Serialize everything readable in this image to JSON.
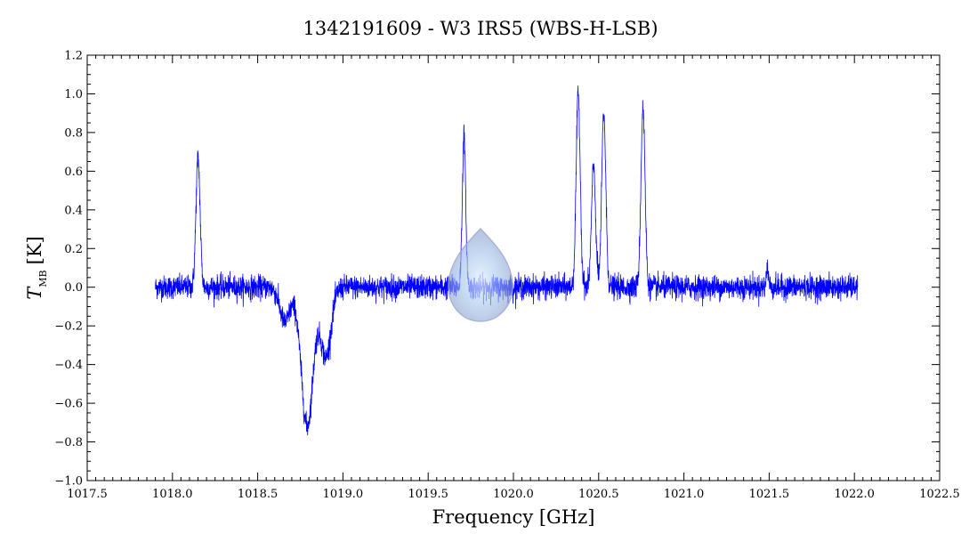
{
  "chart_data": {
    "type": "line",
    "title": "1342191609 - W3 IRS5 (WBS-H-LSB)",
    "xlabel": "Frequency [GHz]",
    "ylabel_main": "T",
    "ylabel_sub": "MB",
    "ylabel_unit": "[K]",
    "xlim": [
      1017.5,
      1022.5
    ],
    "ylim": [
      -1.0,
      1.2
    ],
    "xticks": [
      1017.5,
      1018.0,
      1018.5,
      1019.0,
      1019.5,
      1020.0,
      1020.5,
      1021.0,
      1021.5,
      1022.0,
      1022.5
    ],
    "xtick_labels": [
      "1017.5",
      "1018.0",
      "1018.5",
      "1019.0",
      "1019.5",
      "1020.0",
      "1020.5",
      "1021.0",
      "1021.5",
      "1022.0",
      "1022.5"
    ],
    "yticks": [
      -1.0,
      -0.8,
      -0.6,
      -0.4,
      -0.2,
      0.0,
      0.2,
      0.4,
      0.6,
      0.8,
      1.0,
      1.2
    ],
    "ytick_labels": [
      "−1.0",
      "−0.8",
      "−0.6",
      "−0.4",
      "−0.2",
      "0.0",
      "0.2",
      "0.4",
      "0.6",
      "0.8",
      "1.0",
      "1.2"
    ],
    "grid": false,
    "series": [
      {
        "color": "#0000ff",
        "x_range": [
          1017.9,
          1022.02
        ],
        "noise_rms": 0.03,
        "features": [
          {
            "center": 1018.15,
            "peak": 0.67,
            "width": 0.012
          },
          {
            "center": 1018.66,
            "peak": -0.18,
            "width": 0.03
          },
          {
            "center": 1018.79,
            "peak": -0.72,
            "width": 0.035
          },
          {
            "center": 1018.9,
            "peak": -0.36,
            "width": 0.03
          },
          {
            "center": 1019.71,
            "peak": 0.78,
            "width": 0.01
          },
          {
            "center": 1020.38,
            "peak": 1.0,
            "width": 0.012
          },
          {
            "center": 1020.47,
            "peak": 0.62,
            "width": 0.012
          },
          {
            "center": 1020.53,
            "peak": 0.9,
            "width": 0.012
          },
          {
            "center": 1020.76,
            "peak": 0.93,
            "width": 0.012
          },
          {
            "center": 1021.49,
            "peak": 0.1,
            "width": 0.006
          }
        ]
      }
    ]
  },
  "watermark": {
    "icon": "water-drop-icon",
    "color": "#8090c0"
  }
}
